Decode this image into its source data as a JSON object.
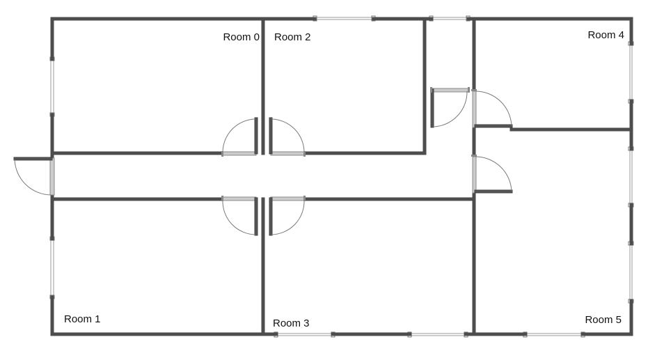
{
  "floorplan": {
    "colors": {
      "wall": "#4d4d4d",
      "background": "#ffffff",
      "door": "#cccccc",
      "window": "#9a9a9a"
    },
    "rooms": [
      {
        "id": "room-0",
        "label": "Room 0"
      },
      {
        "id": "room-1",
        "label": "Room 1"
      },
      {
        "id": "room-2",
        "label": "Room 2"
      },
      {
        "id": "room-3",
        "label": "Room 3"
      },
      {
        "id": "room-4",
        "label": "Room 4"
      },
      {
        "id": "room-5",
        "label": "Room 5"
      }
    ]
  }
}
